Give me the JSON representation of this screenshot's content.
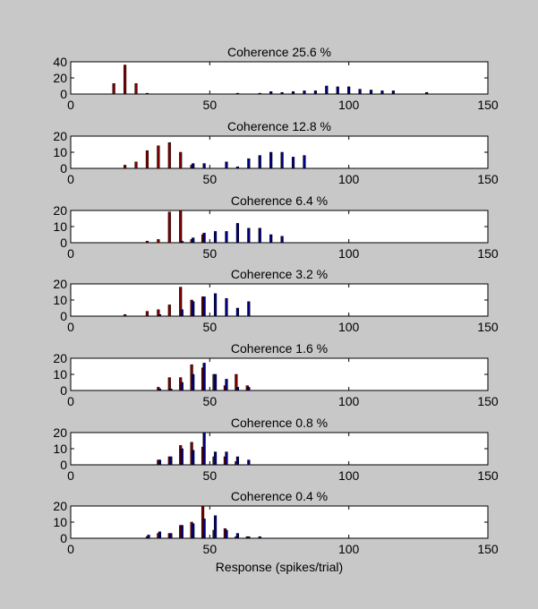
{
  "figure": {
    "background": "#c8c8c8",
    "axes_color": "#ffffff",
    "xlabel": "Response (spikes/trial)",
    "xlim": [
      0,
      150
    ],
    "xticks": [
      "0",
      "50",
      "100",
      "150"
    ]
  },
  "chart_data": [
    {
      "type": "bar",
      "title": "Coherence  25.6 %",
      "ylim": [
        0,
        40
      ],
      "yticks": [
        "0",
        "20",
        "40"
      ],
      "series": [
        {
          "color": "#800000",
          "x": [
            15.5,
            19.5,
            23.5,
            27.5
          ],
          "values": [
            13,
            36,
            13,
            1
          ]
        },
        {
          "color": "#000080",
          "x": [
            60,
            68,
            72,
            76,
            80,
            84,
            88,
            92,
            96,
            100,
            104,
            108,
            112,
            116,
            128
          ],
          "values": [
            1,
            1,
            3,
            2,
            3,
            4,
            4,
            10,
            9,
            9,
            6,
            5,
            4,
            4,
            2
          ]
        }
      ]
    },
    {
      "type": "bar",
      "title": "Coherence  12.8 %",
      "ylim": [
        0,
        20
      ],
      "yticks": [
        "0",
        "10",
        "20"
      ],
      "series": [
        {
          "color": "#800000",
          "x": [
            19.5,
            23.5,
            27.5,
            31.5,
            35.5,
            39.5,
            43.5
          ],
          "values": [
            2,
            4,
            11,
            14,
            16,
            10,
            2
          ]
        },
        {
          "color": "#000080",
          "x": [
            44,
            48,
            52,
            56,
            60,
            64,
            68,
            72,
            76,
            80,
            84
          ],
          "values": [
            3,
            3,
            0,
            4,
            1,
            6,
            8,
            10,
            10,
            7,
            8
          ]
        }
      ]
    },
    {
      "type": "bar",
      "title": "Coherence  6.4 %",
      "ylim": [
        0,
        20
      ],
      "yticks": [
        "0",
        "10",
        "20"
      ],
      "series": [
        {
          "color": "#800000",
          "x": [
            27.5,
            31.5,
            35.5,
            39.5,
            43.5,
            47.5
          ],
          "values": [
            1,
            2,
            19,
            20,
            2,
            5
          ]
        },
        {
          "color": "#000080",
          "x": [
            40,
            44,
            48,
            52,
            56,
            60,
            64,
            68,
            72,
            76
          ],
          "values": [
            1,
            3,
            6,
            7,
            7,
            12,
            9,
            9,
            5,
            4
          ]
        }
      ]
    },
    {
      "type": "bar",
      "title": "Coherence  3.2 %",
      "ylim": [
        0,
        20
      ],
      "yticks": [
        "0",
        "10",
        "20"
      ],
      "series": [
        {
          "color": "#800000",
          "x": [
            19.5,
            27.5,
            31.5,
            35.5,
            39.5,
            43.5,
            47.5
          ],
          "values": [
            1,
            3,
            4,
            7,
            18,
            10,
            12
          ]
        },
        {
          "color": "#000080",
          "x": [
            32,
            40,
            44,
            48,
            52,
            56,
            60,
            64
          ],
          "values": [
            1,
            4,
            9,
            12,
            14,
            11,
            5,
            9
          ]
        }
      ]
    },
    {
      "type": "bar",
      "title": "Coherence  1.6 %",
      "ylim": [
        0,
        20
      ],
      "yticks": [
        "0",
        "10",
        "20"
      ],
      "series": [
        {
          "color": "#800000",
          "x": [
            31.5,
            35.5,
            39.5,
            43.5,
            47.5,
            51.5,
            55.5,
            59.5,
            63.5
          ],
          "values": [
            2,
            8,
            8,
            16,
            14,
            10,
            3,
            10,
            3
          ]
        },
        {
          "color": "#000080",
          "x": [
            32,
            36,
            40,
            44,
            48,
            52,
            56,
            60,
            64
          ],
          "values": [
            1,
            1,
            5,
            10,
            17,
            10,
            7,
            2,
            2
          ]
        }
      ]
    },
    {
      "type": "bar",
      "title": "Coherence  0.8 %",
      "ylim": [
        0,
        20
      ],
      "yticks": [
        "0",
        "10",
        "20"
      ],
      "series": [
        {
          "color": "#800000",
          "x": [
            31.5,
            35.5,
            39.5,
            43.5,
            47.5,
            51.5,
            55.5,
            59.5
          ],
          "values": [
            3,
            5,
            12,
            14,
            11,
            5,
            5,
            2
          ]
        },
        {
          "color": "#000080",
          "x": [
            32,
            36,
            40,
            44,
            48,
            52,
            56,
            60,
            64
          ],
          "values": [
            3,
            5,
            10,
            9,
            20,
            8,
            8,
            5,
            3
          ]
        }
      ]
    },
    {
      "type": "bar",
      "title": "Coherence  0.4 %",
      "ylim": [
        0,
        20
      ],
      "yticks": [
        "0",
        "10",
        "20"
      ],
      "series": [
        {
          "color": "#800000",
          "x": [
            27.5,
            31.5,
            35.5,
            39.5,
            43.5,
            47.5,
            51.5,
            55.5,
            59.5,
            63.5
          ],
          "values": [
            1,
            3,
            3,
            8,
            10,
            20,
            5,
            6,
            1,
            1
          ]
        },
        {
          "color": "#000080",
          "x": [
            28,
            32,
            36,
            40,
            44,
            48,
            52,
            56,
            60,
            64,
            68
          ],
          "values": [
            2,
            4,
            3,
            8,
            9,
            12,
            14,
            5,
            3,
            1,
            1
          ]
        }
      ]
    }
  ]
}
